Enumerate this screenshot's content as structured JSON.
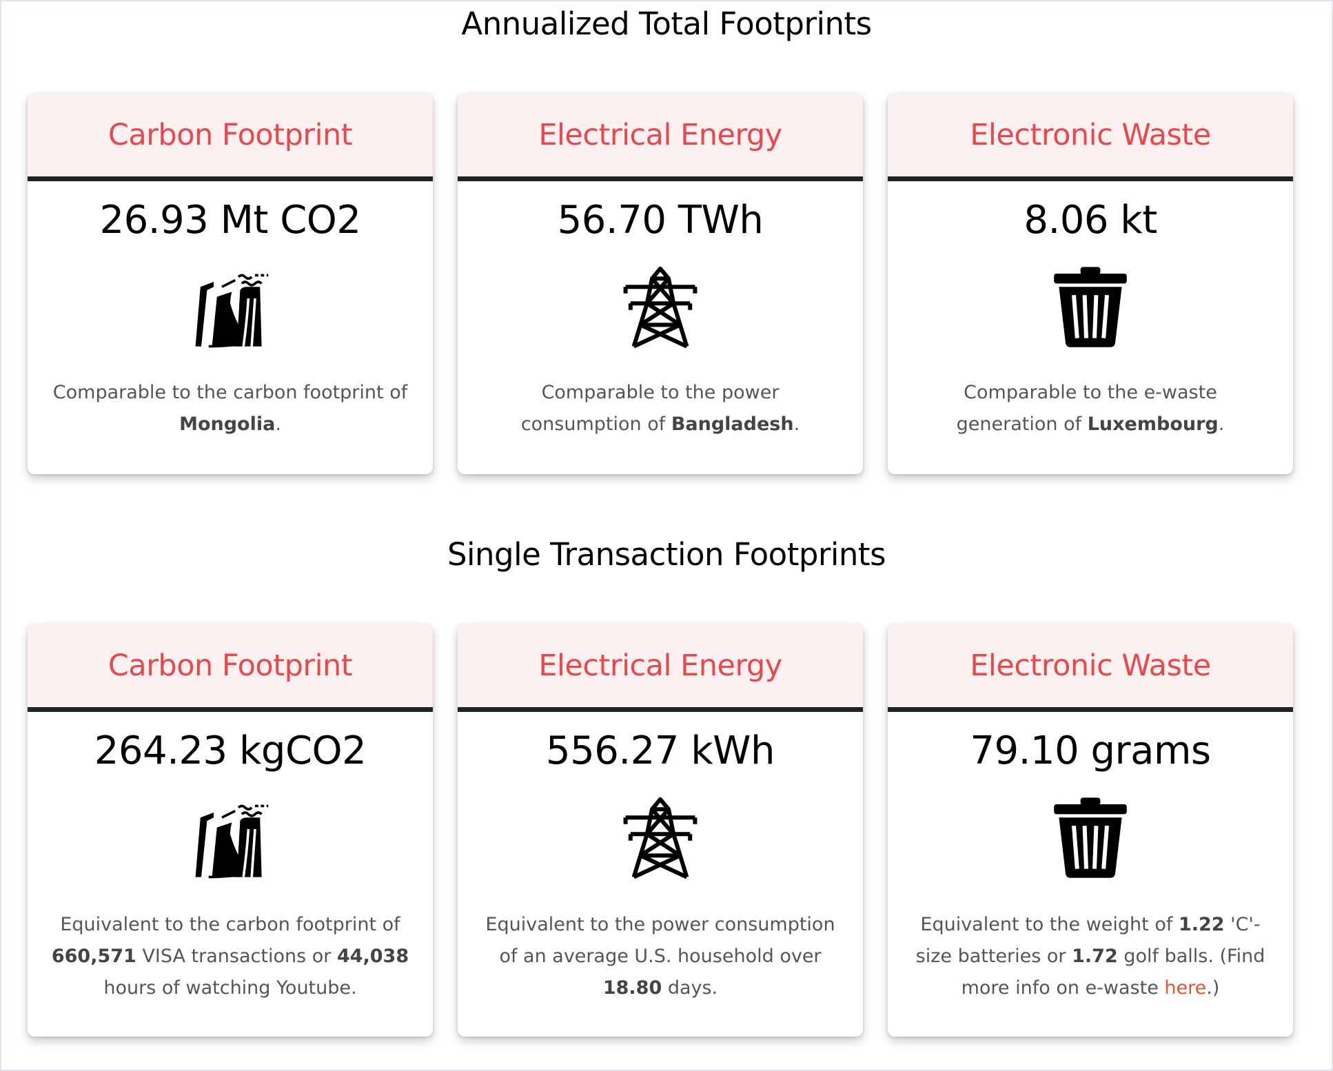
{
  "annual": {
    "title": "Annualized Total Footprints",
    "cards": [
      {
        "title": "Carbon Footprint",
        "value": "26.93 Mt CO2",
        "icon": "power-plant-icon",
        "desc_pre": "Comparable to the carbon footprint of ",
        "desc_bold": "Mongolia",
        "desc_post": "."
      },
      {
        "title": "Electrical Energy",
        "value": "56.70 TWh",
        "icon": "power-tower-icon",
        "desc_pre": "Comparable to the power consumption of ",
        "desc_bold": "Bangladesh",
        "desc_post": "."
      },
      {
        "title": "Electronic Waste",
        "value": "8.06 kt",
        "icon": "trash-can-icon",
        "desc_pre": "Comparable to the e-waste generation of ",
        "desc_bold": "Luxembourg",
        "desc_post": "."
      }
    ]
  },
  "single": {
    "title": "Single Transaction Footprints",
    "cards": [
      {
        "title": "Carbon Footprint",
        "value": "264.23 kgCO2",
        "icon": "power-plant-icon",
        "desc": {
          "t1": "Equivalent to the carbon footprint of ",
          "b1": "660,571",
          "t2": " VISA transactions or ",
          "b2": "44,038",
          "t3": " hours of watching Youtube."
        }
      },
      {
        "title": "Electrical Energy",
        "value": "556.27 kWh",
        "icon": "power-tower-icon",
        "desc": {
          "t1": "Equivalent to the power consumption of an average U.S. household over ",
          "b1": "18.80",
          "t2": " days."
        }
      },
      {
        "title": "Electronic Waste",
        "value": "79.10 grams",
        "icon": "trash-can-icon",
        "desc": {
          "t1": "Equivalent to the weight of ",
          "b1": "1.22",
          "t2": " 'C'-size batteries or ",
          "b2": "1.72",
          "t3": " golf balls. (Find more info on e-waste ",
          "link": "here",
          "t4": ".)"
        }
      }
    ]
  },
  "colors": {
    "card_title": "#e8474c",
    "header_bg": "#fcf1f0",
    "header_rule": "#222222",
    "link": "#e8542c"
  }
}
